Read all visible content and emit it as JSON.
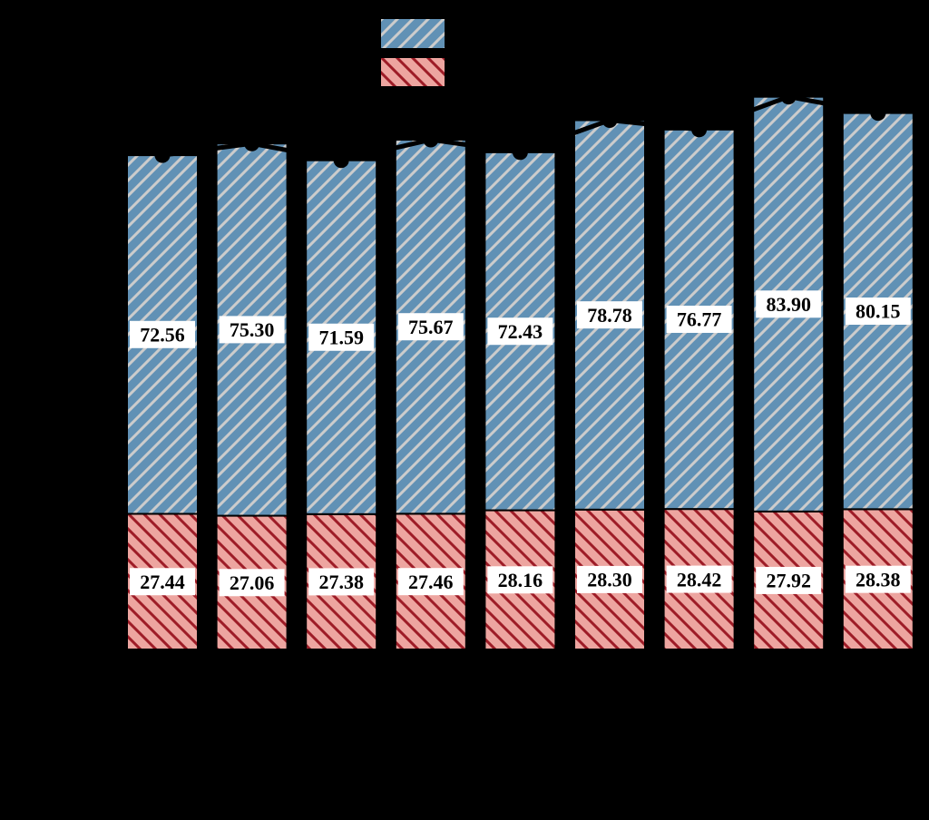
{
  "chart_data": {
    "type": "bar",
    "stacked": true,
    "title": "",
    "xlabel": "",
    "ylabel": "",
    "ylim": [
      0,
      120
    ],
    "grid": false,
    "background_color": "#000000",
    "categories": [
      "",
      "",
      "",
      "",
      "",
      "",
      "",
      "",
      ""
    ],
    "series": [
      {
        "name": "top-segment-blue",
        "fill_color": "#6191b5",
        "hatch": "/",
        "hatch_color": "#cccccc",
        "edge_color": "#000000",
        "values": [
          72.56,
          75.3,
          71.59,
          75.67,
          72.43,
          78.78,
          76.77,
          83.9,
          80.15
        ],
        "labels": [
          "72.56",
          "75.30",
          "71.59",
          "75.67",
          "72.43",
          "78.78",
          "76.77",
          "83.90",
          "80.15"
        ]
      },
      {
        "name": "bottom-segment-red",
        "fill_color": "#eda5a0",
        "hatch": "\\",
        "hatch_color": "#9e1c27",
        "edge_color": "#000000",
        "values": [
          27.44,
          27.06,
          27.38,
          27.46,
          28.16,
          28.3,
          28.42,
          27.92,
          28.38
        ],
        "labels": [
          "27.44",
          "27.06",
          "27.38",
          "27.46",
          "28.16",
          "28.30",
          "28.42",
          "27.92",
          "28.38"
        ]
      }
    ],
    "overlay_line": {
      "description": "black line with circular markers placed at the top of each stacked bar (stacked total), only visible where it crosses the bars",
      "color": "#000000",
      "marker": "circle",
      "marker_color": "#000000",
      "values_equal": "stacked_totals"
    },
    "data_label_style": {
      "background": "#ffffff",
      "text_color": "#000000"
    },
    "legend": {
      "position": "top-center",
      "entries": [
        {
          "name": "legend-swatch-blue",
          "label": "",
          "fill_color": "#6191b5",
          "hatch": "/",
          "hatch_color": "#cccccc"
        },
        {
          "name": "legend-swatch-red",
          "label": "",
          "fill_color": "#eda5a0",
          "hatch": "\\",
          "hatch_color": "#9e1c27"
        }
      ]
    }
  }
}
